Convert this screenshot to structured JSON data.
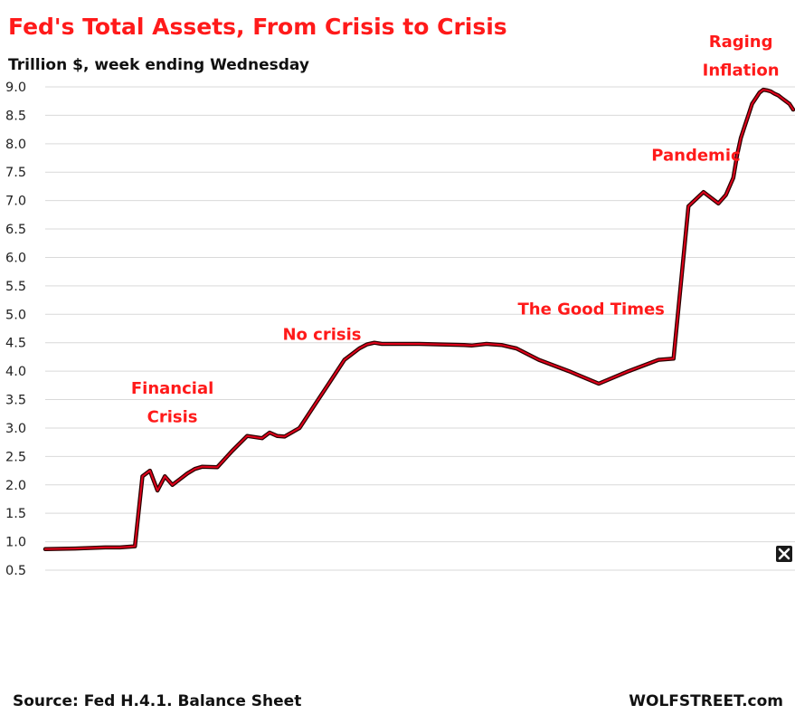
{
  "chart_data": {
    "type": "line",
    "title": "Fed's Total Assets, From Crisis to Crisis",
    "subtitle": "Trillion $, week ending Wednesday",
    "ylim": [
      0.5,
      9.0
    ],
    "yticks": [
      "9.0",
      "8.5",
      "8.0",
      "7.5",
      "7.0",
      "6.5",
      "6.0",
      "5.5",
      "5.0",
      "4.5",
      "4.0",
      "3.5",
      "3.0",
      "2.5",
      "2.0",
      "1.5",
      "1.0",
      "0.5"
    ],
    "grid": true,
    "line_color": "#e0001b",
    "x_index_range": [
      0,
      100
    ],
    "series": [
      {
        "x": [
          0,
          4,
          8,
          10,
          12,
          13,
          14,
          15,
          16,
          17,
          18,
          19,
          20,
          21,
          23,
          25,
          27,
          29,
          30,
          31,
          32,
          34,
          36,
          38,
          40,
          42,
          43,
          44,
          45,
          47,
          50,
          53,
          56,
          57,
          59,
          61,
          63,
          66,
          70,
          74,
          78,
          82,
          84,
          86,
          88,
          90,
          91,
          92,
          92.5,
          93,
          93.5,
          94,
          94.5,
          95,
          95.5,
          96,
          96.5,
          97,
          97.5,
          98,
          98.5,
          99,
          99.5,
          100
        ],
        "values": [
          0.87,
          0.88,
          0.9,
          0.9,
          0.92,
          2.15,
          2.25,
          1.9,
          2.15,
          2.0,
          2.1,
          2.2,
          2.28,
          2.32,
          2.31,
          2.6,
          2.86,
          2.82,
          2.92,
          2.86,
          2.85,
          3.0,
          3.4,
          3.8,
          4.2,
          4.4,
          4.47,
          4.5,
          4.48,
          4.48,
          4.48,
          4.47,
          4.46,
          4.45,
          4.48,
          4.46,
          4.4,
          4.2,
          4.0,
          3.78,
          4.0,
          4.2,
          4.22,
          6.9,
          7.15,
          6.95,
          7.1,
          7.4,
          7.8,
          8.1,
          8.3,
          8.5,
          8.7,
          8.8,
          8.9,
          8.95,
          8.94,
          8.92,
          8.88,
          8.85,
          8.8,
          8.75,
          8.7,
          8.6
        ]
      }
    ],
    "annotations": [
      {
        "text": "Financial",
        "x": 17,
        "y": 3.6
      },
      {
        "text": "Crisis",
        "x": 17,
        "y": 3.1
      },
      {
        "text": "No crisis",
        "x": 37,
        "y": 4.55
      },
      {
        "text": "The Good Times",
        "x": 73,
        "y": 5.0
      },
      {
        "text": "Pandemic",
        "x": 87,
        "y": 7.7
      },
      {
        "text": "Raging",
        "x": 93,
        "y": 9.7
      },
      {
        "text": "Inflation",
        "x": 93,
        "y": 9.2
      }
    ]
  },
  "footer": {
    "source": "Source: Fed H.4.1. Balance Sheet",
    "brand": "WOLFSTREET.com"
  },
  "close_icon": "close-icon"
}
